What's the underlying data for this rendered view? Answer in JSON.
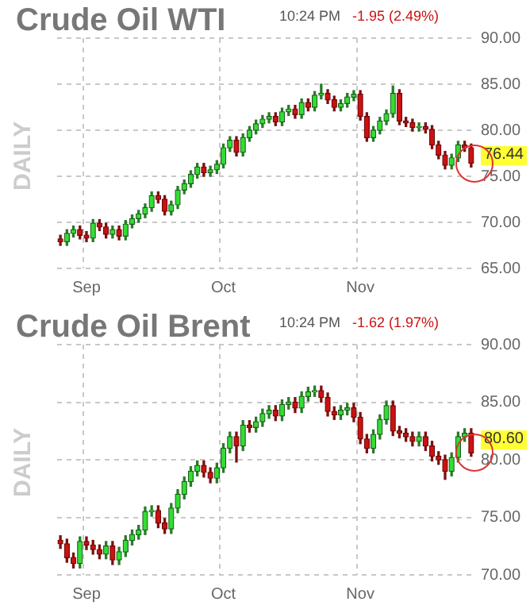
{
  "chart_data": [
    {
      "type": "candlestick",
      "title": "Crude Oil WTI",
      "ylabel": "DAILY",
      "annotations": [
        "10:24 PM",
        "-1.95 (2.49%)",
        "76.44"
      ],
      "categories": [
        null,
        null,
        null,
        null,
        "Sep",
        null,
        null,
        null,
        null,
        null,
        null,
        null,
        null,
        null,
        null,
        null,
        null,
        null,
        null,
        null,
        null,
        null,
        null,
        null,
        null,
        "Oct",
        null,
        null,
        null,
        null,
        null,
        null,
        null,
        null,
        null,
        null,
        null,
        null,
        null,
        null,
        null,
        null,
        null,
        null,
        null,
        null,
        "Nov",
        null,
        null,
        null,
        null,
        null,
        null,
        null,
        null,
        null,
        null,
        null,
        null,
        null,
        null,
        null,
        null,
        null
      ],
      "ohlc": [
        [
          68.2,
          68.6,
          67.5,
          67.9
        ],
        [
          67.9,
          69.2,
          67.5,
          68.8
        ],
        [
          68.8,
          69.6,
          68.4,
          69.2
        ],
        [
          69.2,
          69.6,
          68.2,
          68.6
        ],
        [
          68.6,
          69.0,
          67.9,
          68.3
        ],
        [
          68.3,
          70.3,
          67.9,
          69.9
        ],
        [
          69.9,
          70.3,
          69.1,
          69.5
        ],
        [
          69.5,
          69.9,
          68.3,
          68.7
        ],
        [
          68.7,
          69.6,
          68.3,
          69.2
        ],
        [
          69.2,
          69.6,
          68.1,
          68.5
        ],
        [
          68.5,
          70.2,
          68.1,
          69.8
        ],
        [
          69.8,
          70.8,
          69.4,
          70.4
        ],
        [
          70.4,
          71.3,
          70.0,
          70.9
        ],
        [
          70.9,
          72.0,
          70.5,
          71.6
        ],
        [
          71.6,
          73.3,
          71.2,
          72.9
        ],
        [
          72.9,
          73.3,
          72.1,
          72.5
        ],
        [
          72.5,
          72.9,
          70.8,
          71.2
        ],
        [
          71.2,
          72.3,
          70.8,
          71.9
        ],
        [
          71.9,
          73.9,
          71.5,
          73.5
        ],
        [
          73.5,
          74.6,
          73.1,
          74.2
        ],
        [
          74.2,
          75.6,
          73.8,
          75.2
        ],
        [
          75.2,
          76.4,
          74.8,
          76.0
        ],
        [
          76.0,
          76.4,
          75.0,
          75.4
        ],
        [
          75.4,
          76.1,
          75.0,
          75.7
        ],
        [
          75.7,
          76.7,
          75.3,
          76.3
        ],
        [
          76.3,
          78.5,
          75.9,
          78.1
        ],
        [
          78.1,
          79.3,
          77.7,
          78.9
        ],
        [
          78.9,
          79.3,
          77.2,
          77.6
        ],
        [
          77.6,
          79.6,
          77.2,
          79.2
        ],
        [
          79.2,
          80.4,
          78.8,
          80.0
        ],
        [
          80.0,
          81.1,
          79.6,
          80.7
        ],
        [
          80.7,
          81.6,
          80.3,
          81.2
        ],
        [
          81.2,
          81.9,
          80.8,
          81.5
        ],
        [
          81.5,
          81.9,
          80.5,
          80.9
        ],
        [
          80.9,
          82.4,
          80.5,
          82.0
        ],
        [
          82.0,
          82.7,
          81.6,
          82.3
        ],
        [
          82.3,
          82.7,
          81.3,
          81.7
        ],
        [
          81.7,
          83.4,
          81.3,
          83.0
        ],
        [
          83.0,
          83.4,
          82.1,
          82.5
        ],
        [
          82.5,
          84.2,
          82.1,
          83.8
        ],
        [
          83.8,
          85.0,
          83.4,
          84.0
        ],
        [
          84.0,
          84.4,
          82.9,
          83.3
        ],
        [
          83.3,
          83.7,
          82.1,
          82.5
        ],
        [
          82.5,
          83.3,
          82.1,
          82.9
        ],
        [
          82.9,
          84.0,
          82.5,
          83.6
        ],
        [
          83.6,
          84.3,
          83.2,
          83.9
        ],
        [
          83.9,
          84.3,
          81.1,
          81.5
        ],
        [
          81.5,
          81.9,
          78.8,
          79.2
        ],
        [
          79.2,
          80.4,
          78.8,
          80.0
        ],
        [
          80.0,
          81.4,
          79.6,
          81.0
        ],
        [
          81.0,
          82.2,
          80.6,
          81.8
        ],
        [
          81.8,
          84.8,
          81.4,
          84.0
        ],
        [
          84.0,
          84.4,
          80.6,
          81.0
        ],
        [
          81.0,
          81.4,
          80.4,
          80.8
        ],
        [
          80.8,
          81.2,
          79.9,
          80.3
        ],
        [
          80.3,
          80.8,
          79.9,
          80.4
        ],
        [
          80.4,
          80.8,
          79.7,
          80.1
        ],
        [
          80.1,
          80.5,
          78.0,
          78.4
        ],
        [
          78.4,
          78.8,
          76.9,
          77.3
        ],
        [
          77.3,
          77.7,
          75.8,
          76.2
        ],
        [
          76.2,
          77.4,
          75.8,
          77.0
        ],
        [
          77.0,
          78.8,
          76.6,
          78.4
        ],
        [
          78.4,
          78.8,
          77.7,
          78.1
        ],
        [
          78.1,
          78.5,
          76.0,
          76.44
        ]
      ],
      "ylim": [
        65,
        90
      ],
      "yticks": [
        {
          "value": 65,
          "label": "65.00"
        },
        {
          "value": 70,
          "label": "70.00"
        },
        {
          "value": 75,
          "label": "75.00"
        },
        {
          "value": 80,
          "label": "80.00"
        },
        {
          "value": 85,
          "label": "85.00"
        },
        {
          "value": 90,
          "label": "90.00"
        }
      ],
      "grid": true
    },
    {
      "type": "candlestick",
      "title": "Crude Oil Brent",
      "ylabel": "DAILY",
      "annotations": [
        "10:24 PM",
        "-1.62 (1.97%)",
        "80.60"
      ],
      "categories": [
        null,
        null,
        null,
        null,
        "Sep",
        null,
        null,
        null,
        null,
        null,
        null,
        null,
        null,
        null,
        null,
        null,
        null,
        null,
        null,
        null,
        null,
        null,
        null,
        null,
        null,
        "Oct",
        null,
        null,
        null,
        null,
        null,
        null,
        null,
        null,
        null,
        null,
        null,
        null,
        null,
        null,
        null,
        null,
        null,
        null,
        null,
        null,
        "Nov",
        null,
        null,
        null,
        null,
        null,
        null,
        null,
        null,
        null,
        null,
        null,
        null,
        null,
        null,
        null,
        null,
        null
      ],
      "ohlc": [
        [
          73.0,
          73.4,
          72.3,
          72.7
        ],
        [
          72.7,
          73.1,
          71.1,
          71.5
        ],
        [
          71.5,
          71.9,
          70.6,
          71.0
        ],
        [
          71.0,
          73.3,
          70.6,
          72.9
        ],
        [
          72.9,
          73.3,
          72.2,
          72.6
        ],
        [
          72.6,
          73.0,
          71.8,
          72.2
        ],
        [
          72.2,
          72.6,
          71.4,
          71.8
        ],
        [
          71.8,
          72.9,
          71.4,
          72.5
        ],
        [
          72.5,
          72.9,
          70.9,
          71.3
        ],
        [
          71.3,
          72.4,
          70.9,
          72.0
        ],
        [
          72.0,
          73.4,
          71.6,
          73.0
        ],
        [
          73.0,
          73.9,
          72.6,
          73.5
        ],
        [
          73.5,
          74.3,
          73.1,
          73.9
        ],
        [
          73.9,
          75.9,
          73.5,
          75.5
        ],
        [
          75.5,
          76.0,
          75.1,
          75.6
        ],
        [
          75.6,
          76.0,
          74.1,
          74.5
        ],
        [
          74.5,
          74.9,
          73.6,
          74.0
        ],
        [
          74.0,
          76.2,
          73.6,
          75.8
        ],
        [
          75.8,
          77.4,
          75.4,
          77.0
        ],
        [
          77.0,
          78.5,
          76.6,
          78.1
        ],
        [
          78.1,
          79.4,
          77.7,
          79.0
        ],
        [
          79.0,
          79.9,
          78.6,
          79.5
        ],
        [
          79.5,
          79.9,
          78.5,
          78.9
        ],
        [
          78.9,
          79.3,
          78.0,
          78.4
        ],
        [
          78.4,
          79.7,
          78.0,
          79.3
        ],
        [
          79.3,
          81.4,
          78.9,
          81.0
        ],
        [
          81.0,
          82.4,
          80.6,
          82.0
        ],
        [
          82.0,
          82.4,
          79.8,
          81.2
        ],
        [
          81.2,
          83.4,
          80.8,
          83.0
        ],
        [
          83.0,
          83.4,
          82.4,
          82.8
        ],
        [
          82.8,
          83.7,
          82.4,
          83.3
        ],
        [
          83.3,
          84.4,
          82.9,
          84.0
        ],
        [
          84.0,
          84.7,
          83.6,
          84.3
        ],
        [
          84.3,
          84.7,
          83.4,
          83.8
        ],
        [
          83.8,
          85.2,
          83.4,
          84.8
        ],
        [
          84.8,
          85.4,
          84.4,
          85.0
        ],
        [
          85.0,
          85.4,
          84.1,
          84.5
        ],
        [
          84.5,
          85.9,
          84.1,
          85.5
        ],
        [
          85.5,
          86.3,
          85.1,
          85.9
        ],
        [
          85.9,
          86.4,
          85.5,
          86.0
        ],
        [
          86.0,
          86.4,
          85.0,
          85.4
        ],
        [
          85.4,
          85.8,
          83.8,
          84.2
        ],
        [
          84.2,
          84.6,
          83.5,
          83.9
        ],
        [
          83.9,
          84.7,
          83.5,
          84.3
        ],
        [
          84.3,
          84.9,
          83.9,
          84.5
        ],
        [
          84.5,
          84.9,
          83.3,
          83.7
        ],
        [
          83.7,
          84.1,
          81.4,
          81.8
        ],
        [
          81.8,
          82.2,
          80.6,
          81.0
        ],
        [
          81.0,
          82.6,
          80.6,
          82.2
        ],
        [
          82.2,
          83.9,
          81.8,
          83.5
        ],
        [
          83.5,
          85.1,
          83.1,
          84.7
        ],
        [
          84.7,
          85.1,
          82.1,
          82.5
        ],
        [
          82.5,
          82.9,
          81.9,
          82.3
        ],
        [
          82.3,
          82.7,
          81.6,
          82.0
        ],
        [
          82.0,
          82.4,
          81.2,
          81.6
        ],
        [
          81.6,
          82.4,
          81.2,
          82.0
        ],
        [
          82.0,
          82.4,
          80.8,
          81.2
        ],
        [
          81.2,
          81.6,
          79.9,
          80.3
        ],
        [
          80.3,
          80.7,
          79.6,
          80.0
        ],
        [
          80.0,
          80.4,
          78.3,
          79.0
        ],
        [
          79.0,
          80.6,
          78.6,
          80.2
        ],
        [
          80.2,
          82.4,
          79.8,
          82.0
        ],
        [
          82.0,
          82.7,
          81.6,
          82.3
        ],
        [
          82.3,
          82.7,
          80.3,
          80.6
        ]
      ],
      "ylim": [
        70,
        90
      ],
      "yticks": [
        {
          "value": 70,
          "label": "70.00"
        },
        {
          "value": 75,
          "label": "75.00"
        },
        {
          "value": 80,
          "label": "80.00"
        },
        {
          "value": 85,
          "label": "85.00"
        },
        {
          "value": 90,
          "label": "90.00"
        }
      ],
      "grid": true
    }
  ]
}
